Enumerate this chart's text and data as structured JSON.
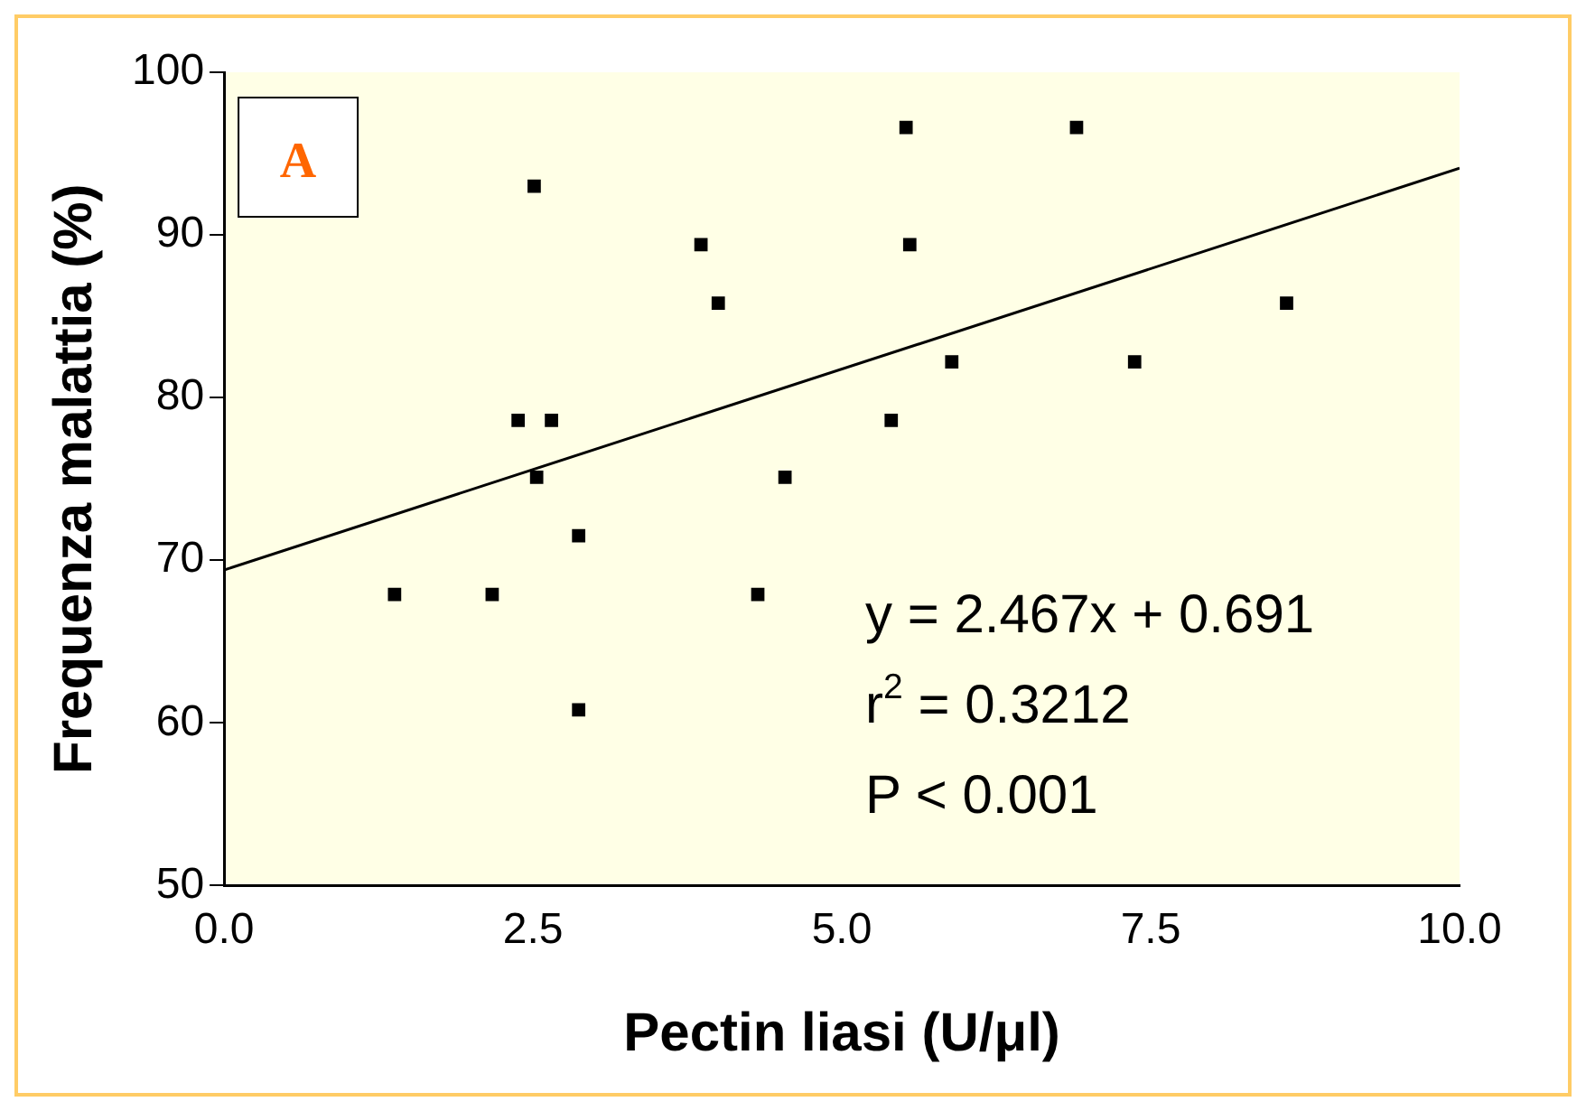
{
  "chart_data": {
    "type": "scatter",
    "xlabel": "Pectin liasi (U/μl)",
    "ylabel": "Frequenza malattia (%)",
    "annotations": [
      "A",
      "y = 2.467x + 0.691",
      "r$^{2}$ = 0.3212",
      "P < 0.001"
    ],
    "series": [
      {
        "color": "#000000",
        "marker": "square",
        "x": [
          1.38,
          2.17,
          2.38,
          2.65,
          2.51,
          2.53,
          2.87,
          2.87,
          3.86,
          4.0,
          4.32,
          4.54,
          5.4,
          5.52,
          5.55,
          5.89,
          6.9,
          7.37,
          8.6
        ],
        "values": [
          67.9,
          67.9,
          78.6,
          78.6,
          93.0,
          75.1,
          71.5,
          60.8,
          89.4,
          85.8,
          67.9,
          75.1,
          78.6,
          96.6,
          89.4,
          82.2,
          96.6,
          82.2,
          85.8
        ]
      },
      {
        "type": "line",
        "color": "#000000",
        "marker": "none",
        "x": [
          0,
          10
        ],
        "values": [
          69.4,
          94.1
        ]
      }
    ],
    "xlim": [
      0,
      10
    ],
    "xticks": [
      {
        "value": 0,
        "label": "0.0"
      },
      {
        "value": 2.5,
        "label": "2.5"
      },
      {
        "value": 5,
        "label": "5.0"
      },
      {
        "value": 7.5,
        "label": "7.5"
      },
      {
        "value": 10,
        "label": "10.0"
      }
    ],
    "ylim": [
      50,
      100
    ],
    "yticks": [
      50,
      60,
      70,
      80,
      90,
      100
    ],
    "grid": false,
    "legend": false
  }
}
